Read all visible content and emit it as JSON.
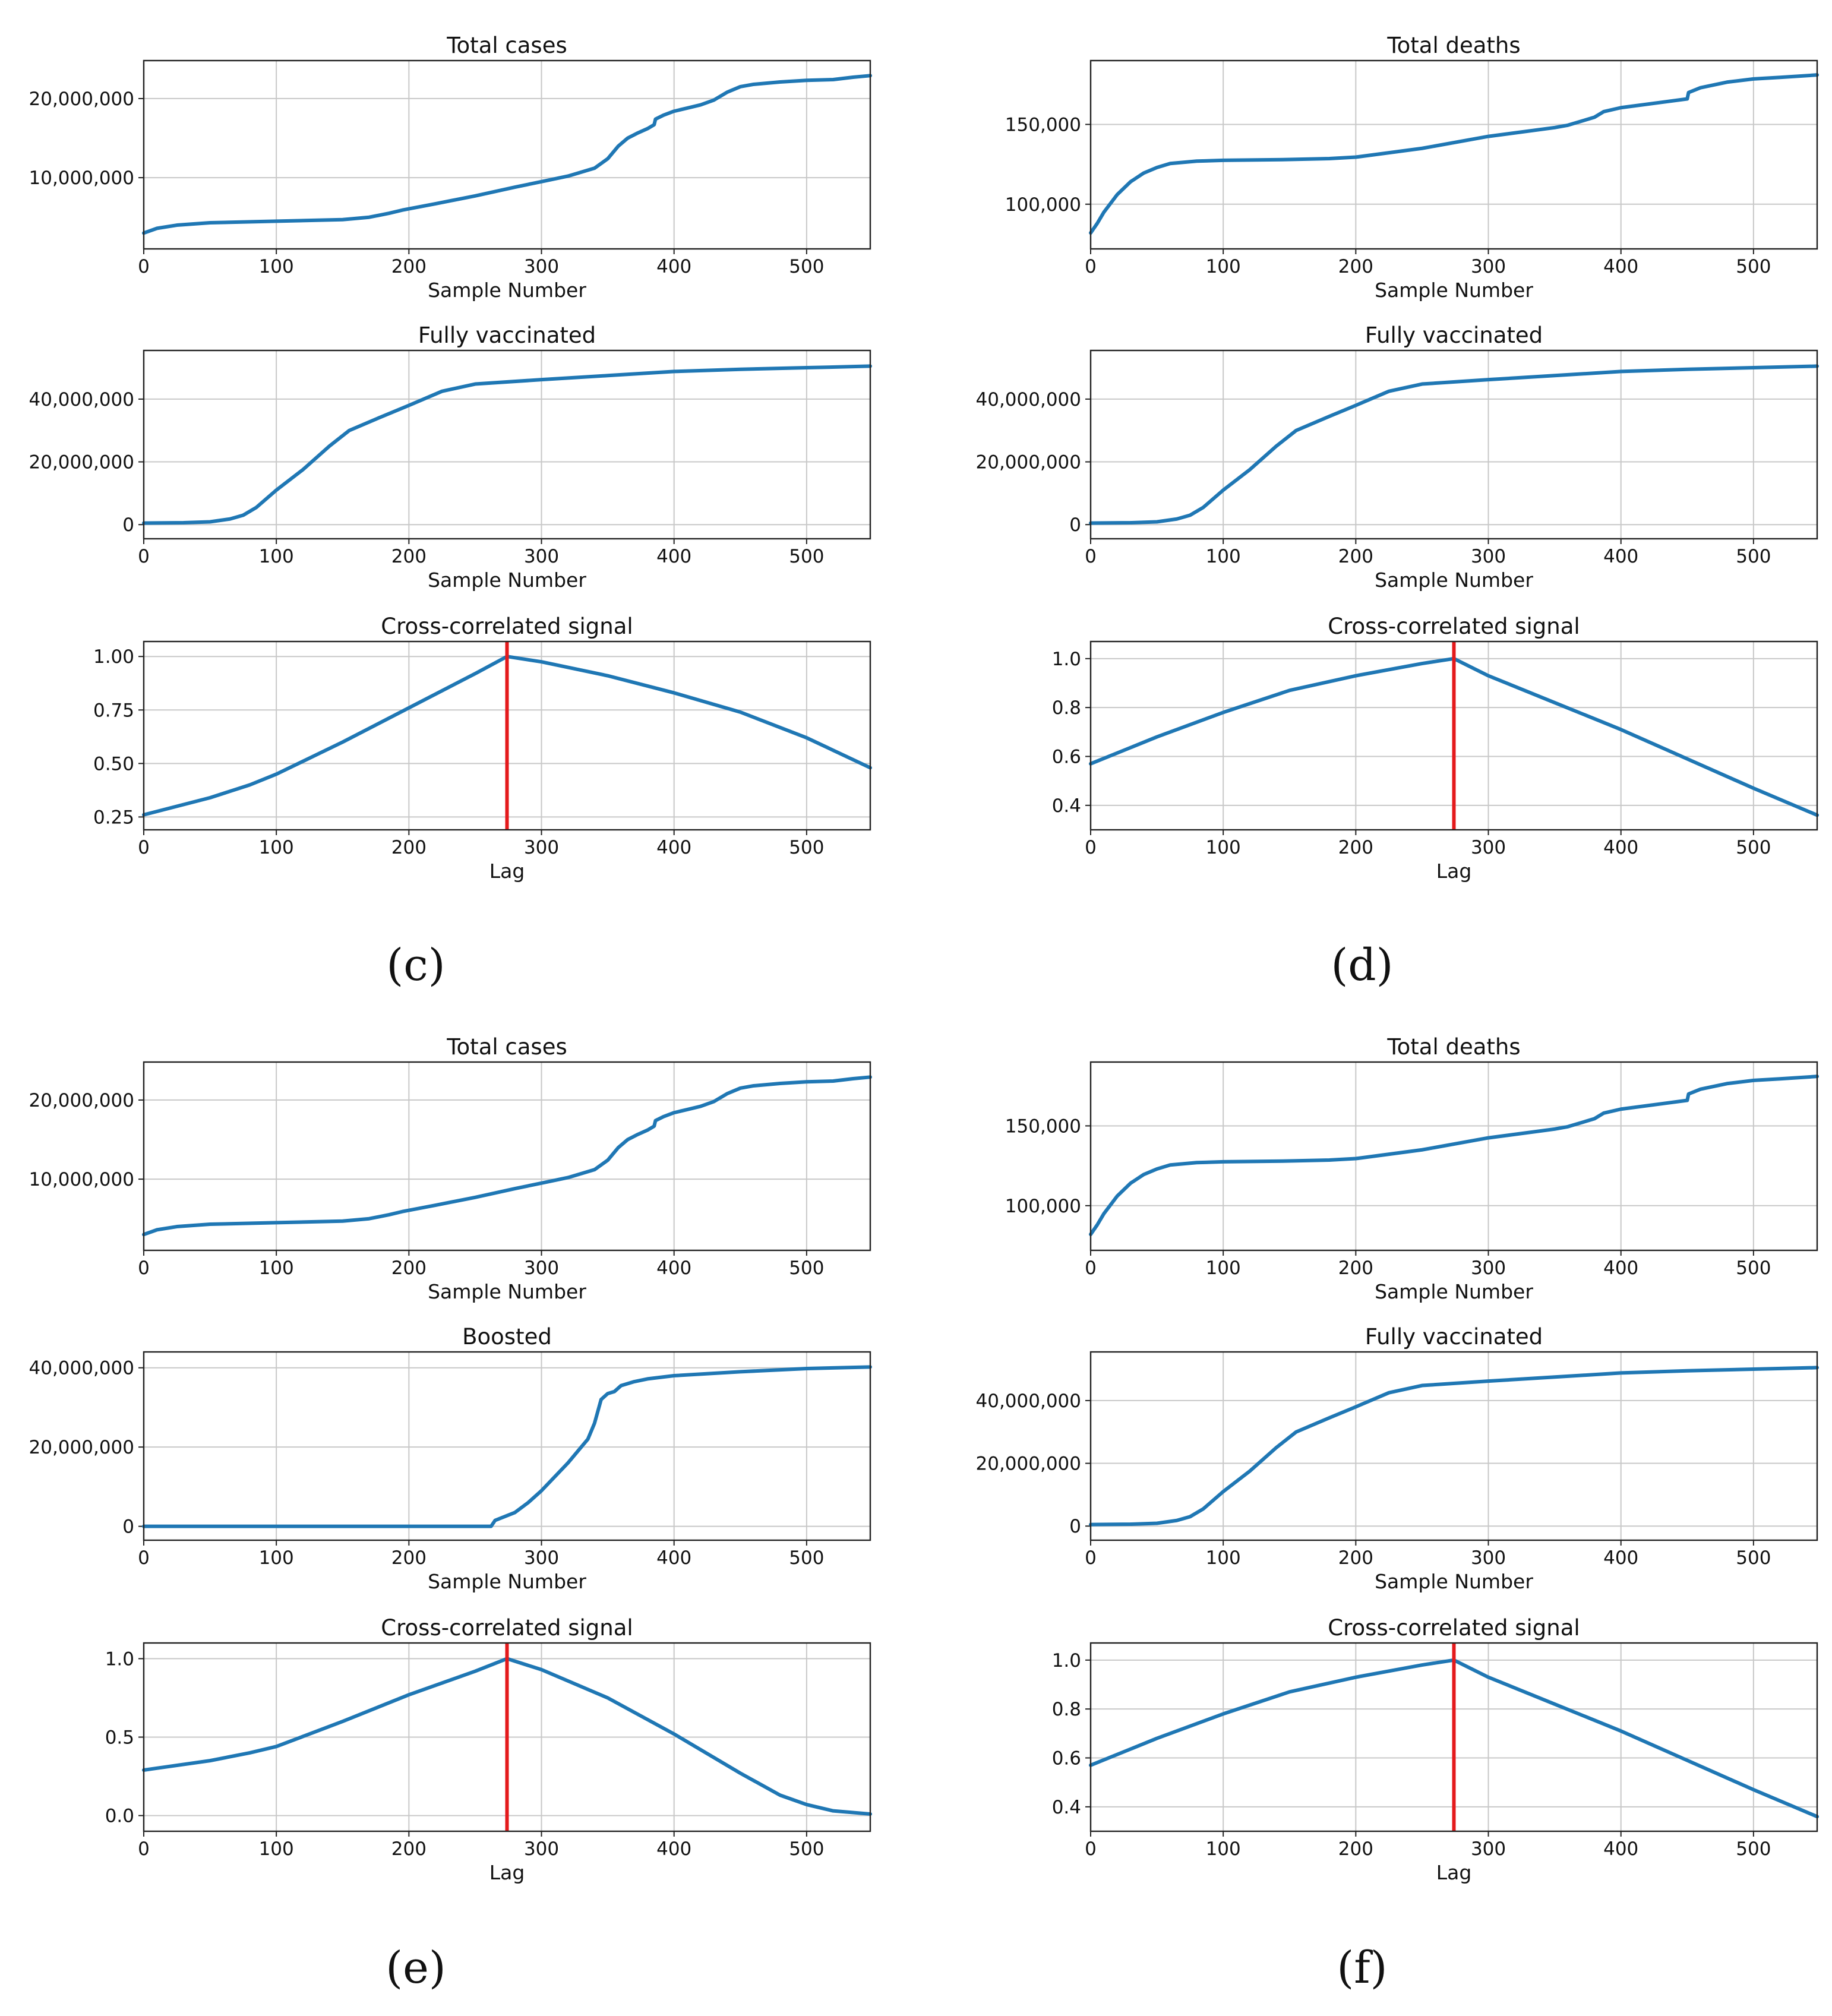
{
  "colors": {
    "series": "#1f77b4",
    "lag_marker": "#e41a1c",
    "grid": "#c8c8c8"
  },
  "panel_labels": [
    "(c)",
    "(d)",
    "(e)",
    "(f)"
  ],
  "chart_data": [
    {
      "id": "c1",
      "panel": "(c)",
      "type": "line",
      "title": "Total cases",
      "xlabel": "Sample Number",
      "ylabel": "",
      "grid": true,
      "xlim": [
        0,
        548
      ],
      "ylim": [
        1000000,
        24800000
      ],
      "xticks": [
        0,
        100,
        200,
        300,
        400,
        500
      ],
      "yticks": [
        10000000,
        20000000
      ],
      "ytick_labels": [
        "10,000,000",
        "20,000,000"
      ],
      "series": [
        {
          "name": "Total cases",
          "x": [
            0,
            10,
            25,
            50,
            100,
            150,
            170,
            185,
            195,
            220,
            250,
            280,
            300,
            320,
            340,
            350,
            358,
            365,
            372,
            380,
            385,
            386,
            392,
            400,
            410,
            420,
            430,
            440,
            450,
            460,
            480,
            500,
            520,
            535,
            548
          ],
          "y": [
            3000000,
            3600000,
            4000000,
            4300000,
            4500000,
            4700000,
            5000000,
            5500000,
            5900000,
            6700000,
            7700000,
            8800000,
            9500000,
            10200000,
            11200000,
            12400000,
            14000000,
            15000000,
            15600000,
            16200000,
            16700000,
            17400000,
            17900000,
            18400000,
            18800000,
            19200000,
            19800000,
            20800000,
            21500000,
            21800000,
            22100000,
            22300000,
            22400000,
            22700000,
            22900000
          ]
        }
      ]
    },
    {
      "id": "c2",
      "panel": "(c)",
      "type": "line",
      "title": "Fully vaccinated",
      "xlabel": "Sample Number",
      "ylabel": "",
      "grid": true,
      "xlim": [
        0,
        548
      ],
      "ylim": [
        -4500000,
        55500000
      ],
      "xticks": [
        0,
        100,
        200,
        300,
        400,
        500
      ],
      "yticks": [
        0,
        20000000,
        40000000
      ],
      "ytick_labels": [
        "0",
        "20,000,000",
        "40,000,000"
      ],
      "series": [
        {
          "name": "Fully vaccinated",
          "x": [
            0,
            30,
            50,
            65,
            75,
            85,
            100,
            120,
            140,
            155,
            180,
            200,
            225,
            250,
            300,
            350,
            400,
            450,
            500,
            548
          ],
          "y": [
            500000,
            600000,
            900000,
            1800000,
            3000000,
            5500000,
            11000000,
            17500000,
            25000000,
            30000000,
            34500000,
            38000000,
            42500000,
            44800000,
            46200000,
            47500000,
            48800000,
            49500000,
            50000000,
            50500000
          ]
        }
      ]
    },
    {
      "id": "c3",
      "panel": "(c)",
      "type": "line",
      "title": "Cross-correlated signal",
      "xlabel": "Lag",
      "ylabel": "",
      "grid": true,
      "xlim": [
        0,
        548
      ],
      "ylim": [
        0.19,
        1.07
      ],
      "xticks": [
        0,
        100,
        200,
        300,
        400,
        500
      ],
      "yticks": [
        0.25,
        0.5,
        0.75,
        1.0
      ],
      "ytick_labels": [
        "0.25",
        "0.50",
        "0.75",
        "1.00"
      ],
      "lag_marker": 274,
      "series": [
        {
          "name": "Cross-correlation",
          "x": [
            0,
            50,
            80,
            100,
            150,
            200,
            250,
            274,
            300,
            350,
            400,
            450,
            500,
            548
          ],
          "y": [
            0.26,
            0.34,
            0.4,
            0.45,
            0.6,
            0.76,
            0.92,
            1.0,
            0.975,
            0.91,
            0.83,
            0.74,
            0.62,
            0.48
          ]
        }
      ]
    },
    {
      "id": "d1",
      "panel": "(d)",
      "type": "line",
      "title": "Total deaths",
      "xlabel": "Sample Number",
      "ylabel": "",
      "grid": true,
      "xlim": [
        0,
        548
      ],
      "ylim": [
        72000,
        190000
      ],
      "xticks": [
        0,
        100,
        200,
        300,
        400,
        500
      ],
      "yticks": [
        100000,
        150000
      ],
      "ytick_labels": [
        "100,000",
        "150,000"
      ],
      "series": [
        {
          "name": "Total deaths",
          "x": [
            0,
            5,
            10,
            20,
            30,
            40,
            50,
            60,
            80,
            100,
            150,
            180,
            200,
            250,
            300,
            350,
            360,
            380,
            387,
            400,
            450,
            451,
            460,
            480,
            500,
            520,
            548
          ],
          "y": [
            82000,
            88000,
            95000,
            106000,
            114000,
            119500,
            123000,
            125500,
            127000,
            127500,
            128000,
            128600,
            129500,
            135000,
            142500,
            148000,
            149500,
            154500,
            158000,
            160500,
            166000,
            170000,
            173000,
            176500,
            178500,
            179500,
            181000
          ]
        }
      ]
    },
    {
      "id": "d2",
      "panel": "(d)",
      "type": "line",
      "title": "Fully vaccinated",
      "xlabel": "Sample Number",
      "ylabel": "",
      "grid": true,
      "xlim": [
        0,
        548
      ],
      "ylim": [
        -4500000,
        55500000
      ],
      "xticks": [
        0,
        100,
        200,
        300,
        400,
        500
      ],
      "yticks": [
        0,
        20000000,
        40000000
      ],
      "ytick_labels": [
        "0",
        "20,000,000",
        "40,000,000"
      ],
      "series": [
        {
          "name": "Fully vaccinated",
          "x": [
            0,
            30,
            50,
            65,
            75,
            85,
            100,
            120,
            140,
            155,
            180,
            200,
            225,
            250,
            300,
            350,
            400,
            450,
            500,
            548
          ],
          "y": [
            500000,
            600000,
            900000,
            1800000,
            3000000,
            5500000,
            11000000,
            17500000,
            25000000,
            30000000,
            34500000,
            38000000,
            42500000,
            44800000,
            46200000,
            47500000,
            48800000,
            49500000,
            50000000,
            50500000
          ]
        }
      ]
    },
    {
      "id": "d3",
      "panel": "(d)",
      "type": "line",
      "title": "Cross-correlated signal",
      "xlabel": "Lag",
      "ylabel": "",
      "grid": true,
      "xlim": [
        0,
        548
      ],
      "ylim": [
        0.3,
        1.07
      ],
      "xticks": [
        0,
        100,
        200,
        300,
        400,
        500
      ],
      "yticks": [
        0.4,
        0.6,
        0.8,
        1.0
      ],
      "ytick_labels": [
        "0.4",
        "0.6",
        "0.8",
        "1.0"
      ],
      "lag_marker": 274,
      "series": [
        {
          "name": "Cross-correlation",
          "x": [
            0,
            50,
            100,
            150,
            200,
            250,
            274,
            300,
            350,
            400,
            450,
            500,
            548
          ],
          "y": [
            0.57,
            0.68,
            0.78,
            0.87,
            0.93,
            0.98,
            1.0,
            0.93,
            0.82,
            0.71,
            0.59,
            0.47,
            0.36
          ]
        }
      ]
    },
    {
      "id": "e1",
      "panel": "(e)",
      "type": "line",
      "title": "Total cases",
      "xlabel": "Sample Number",
      "ylabel": "",
      "grid": true,
      "xlim": [
        0,
        548
      ],
      "ylim": [
        1000000,
        24800000
      ],
      "xticks": [
        0,
        100,
        200,
        300,
        400,
        500
      ],
      "yticks": [
        10000000,
        20000000
      ],
      "ytick_labels": [
        "10,000,000",
        "20,000,000"
      ],
      "series": [
        {
          "name": "Total cases",
          "x": [
            0,
            10,
            25,
            50,
            100,
            150,
            170,
            185,
            195,
            220,
            250,
            280,
            300,
            320,
            340,
            350,
            358,
            365,
            372,
            380,
            385,
            386,
            392,
            400,
            410,
            420,
            430,
            440,
            450,
            460,
            480,
            500,
            520,
            535,
            548
          ],
          "y": [
            3000000,
            3600000,
            4000000,
            4300000,
            4500000,
            4700000,
            5000000,
            5500000,
            5900000,
            6700000,
            7700000,
            8800000,
            9500000,
            10200000,
            11200000,
            12400000,
            14000000,
            15000000,
            15600000,
            16200000,
            16700000,
            17400000,
            17900000,
            18400000,
            18800000,
            19200000,
            19800000,
            20800000,
            21500000,
            21800000,
            22100000,
            22300000,
            22400000,
            22700000,
            22900000
          ]
        }
      ]
    },
    {
      "id": "e2",
      "panel": "(e)",
      "type": "line",
      "title": "Boosted",
      "xlabel": "Sample Number",
      "ylabel": "",
      "grid": true,
      "xlim": [
        0,
        548
      ],
      "ylim": [
        -3500000,
        44000000
      ],
      "xticks": [
        0,
        100,
        200,
        300,
        400,
        500
      ],
      "yticks": [
        0,
        20000000,
        40000000
      ],
      "ytick_labels": [
        "0",
        "20,000,000",
        "40,000,000"
      ],
      "series": [
        {
          "name": "Boosted",
          "x": [
            0,
            100,
            200,
            262,
            265,
            280,
            290,
            300,
            320,
            335,
            340,
            345,
            350,
            355,
            360,
            370,
            380,
            400,
            450,
            500,
            548
          ],
          "y": [
            0,
            0,
            0,
            0,
            1500000,
            3500000,
            6000000,
            9000000,
            16000000,
            22000000,
            26000000,
            32000000,
            33500000,
            34000000,
            35500000,
            36500000,
            37200000,
            38000000,
            39000000,
            39800000,
            40200000
          ]
        }
      ]
    },
    {
      "id": "e3",
      "panel": "(e)",
      "type": "line",
      "title": "Cross-correlated signal",
      "xlabel": "Lag",
      "ylabel": "",
      "grid": true,
      "xlim": [
        0,
        548
      ],
      "ylim": [
        -0.1,
        1.1
      ],
      "xticks": [
        0,
        100,
        200,
        300,
        400,
        500
      ],
      "yticks": [
        0.0,
        0.5,
        1.0
      ],
      "ytick_labels": [
        "0.0",
        "0.5",
        "1.0"
      ],
      "lag_marker": 274,
      "series": [
        {
          "name": "Cross-correlation",
          "x": [
            0,
            50,
            80,
            100,
            150,
            200,
            250,
            274,
            300,
            350,
            400,
            450,
            480,
            500,
            520,
            548
          ],
          "y": [
            0.29,
            0.35,
            0.4,
            0.44,
            0.6,
            0.77,
            0.92,
            1.0,
            0.93,
            0.75,
            0.52,
            0.27,
            0.13,
            0.07,
            0.03,
            0.01
          ]
        }
      ]
    },
    {
      "id": "f1",
      "panel": "(f)",
      "type": "line",
      "title": "Total deaths",
      "xlabel": "Sample Number",
      "ylabel": "",
      "grid": true,
      "xlim": [
        0,
        548
      ],
      "ylim": [
        72000,
        190000
      ],
      "xticks": [
        0,
        100,
        200,
        300,
        400,
        500
      ],
      "yticks": [
        100000,
        150000
      ],
      "ytick_labels": [
        "100,000",
        "150,000"
      ],
      "series": [
        {
          "name": "Total deaths",
          "x": [
            0,
            5,
            10,
            20,
            30,
            40,
            50,
            60,
            80,
            100,
            150,
            180,
            200,
            250,
            300,
            350,
            360,
            380,
            387,
            400,
            450,
            451,
            460,
            480,
            500,
            520,
            548
          ],
          "y": [
            82000,
            88000,
            95000,
            106000,
            114000,
            119500,
            123000,
            125500,
            127000,
            127500,
            128000,
            128600,
            129500,
            135000,
            142500,
            148000,
            149500,
            154500,
            158000,
            160500,
            166000,
            170000,
            173000,
            176500,
            178500,
            179500,
            181000
          ]
        }
      ]
    },
    {
      "id": "f2",
      "panel": "(f)",
      "type": "line",
      "title": "Fully vaccinated",
      "xlabel": "Sample Number",
      "ylabel": "",
      "grid": true,
      "xlim": [
        0,
        548
      ],
      "ylim": [
        -4500000,
        55500000
      ],
      "xticks": [
        0,
        100,
        200,
        300,
        400,
        500
      ],
      "yticks": [
        0,
        20000000,
        40000000
      ],
      "ytick_labels": [
        "0",
        "20,000,000",
        "40,000,000"
      ],
      "series": [
        {
          "name": "Fully vaccinated",
          "x": [
            0,
            30,
            50,
            65,
            75,
            85,
            100,
            120,
            140,
            155,
            180,
            200,
            225,
            250,
            300,
            350,
            400,
            450,
            500,
            548
          ],
          "y": [
            500000,
            600000,
            900000,
            1800000,
            3000000,
            5500000,
            11000000,
            17500000,
            25000000,
            30000000,
            34500000,
            38000000,
            42500000,
            44800000,
            46200000,
            47500000,
            48800000,
            49500000,
            50000000,
            50500000
          ]
        }
      ]
    },
    {
      "id": "f3",
      "panel": "(f)",
      "type": "line",
      "title": "Cross-correlated signal",
      "xlabel": "Lag",
      "ylabel": "",
      "grid": true,
      "xlim": [
        0,
        548
      ],
      "ylim": [
        0.3,
        1.07
      ],
      "xticks": [
        0,
        100,
        200,
        300,
        400,
        500
      ],
      "yticks": [
        0.4,
        0.6,
        0.8,
        1.0
      ],
      "ytick_labels": [
        "0.4",
        "0.6",
        "0.8",
        "1.0"
      ],
      "lag_marker": 274,
      "series": [
        {
          "name": "Cross-correlation",
          "x": [
            0,
            50,
            100,
            150,
            200,
            250,
            274,
            300,
            350,
            400,
            450,
            500,
            548
          ],
          "y": [
            0.57,
            0.68,
            0.78,
            0.87,
            0.93,
            0.98,
            1.0,
            0.93,
            0.82,
            0.71,
            0.59,
            0.47,
            0.36
          ]
        }
      ]
    }
  ]
}
